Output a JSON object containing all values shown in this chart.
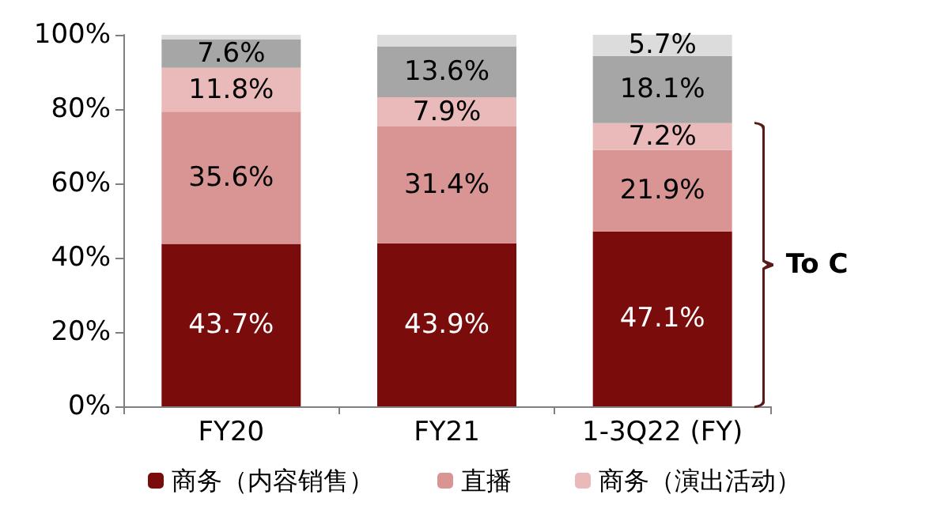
{
  "chart_data": {
    "type": "bar",
    "stacked": true,
    "categories": [
      "FY20",
      "FY21",
      "1-3Q22 (FY)"
    ],
    "series": [
      {
        "name": "商务（内容销售）",
        "color": "#7b0c0c",
        "values": [
          43.7,
          43.9,
          47.1
        ],
        "value_labels": [
          "43.7%",
          "43.9%",
          "47.1%"
        ]
      },
      {
        "name": "直播",
        "color": "#d99594",
        "values": [
          35.6,
          31.4,
          21.9
        ],
        "value_labels": [
          "35.6%",
          "31.4%",
          "21.9%"
        ]
      },
      {
        "name": "商务（演出活动）",
        "color": "#eab9b9",
        "values": [
          11.8,
          7.9,
          7.2
        ],
        "value_labels": [
          "11.8%",
          "7.9%",
          "7.2%"
        ]
      },
      {
        "color": "#a6a6a6",
        "values": [
          7.6,
          13.6,
          18.1
        ],
        "value_labels": [
          "7.6%",
          "13.6%",
          "18.1%"
        ]
      },
      {
        "color": "#dcdcdc",
        "values": [
          1.3,
          3.2,
          5.7
        ],
        "value_labels": [
          null,
          null,
          "5.7%"
        ]
      }
    ],
    "ylim": [
      0,
      100
    ],
    "yticks": [
      {
        "value": 0,
        "label": "0%"
      },
      {
        "value": 20,
        "label": "20%"
      },
      {
        "value": 40,
        "label": "40%"
      },
      {
        "value": 60,
        "label": "60%"
      },
      {
        "value": 80,
        "label": "80%"
      },
      {
        "value": 100,
        "label": "100%"
      }
    ],
    "grid": false,
    "legend": "bottom",
    "annotations": [
      "To C"
    ]
  }
}
